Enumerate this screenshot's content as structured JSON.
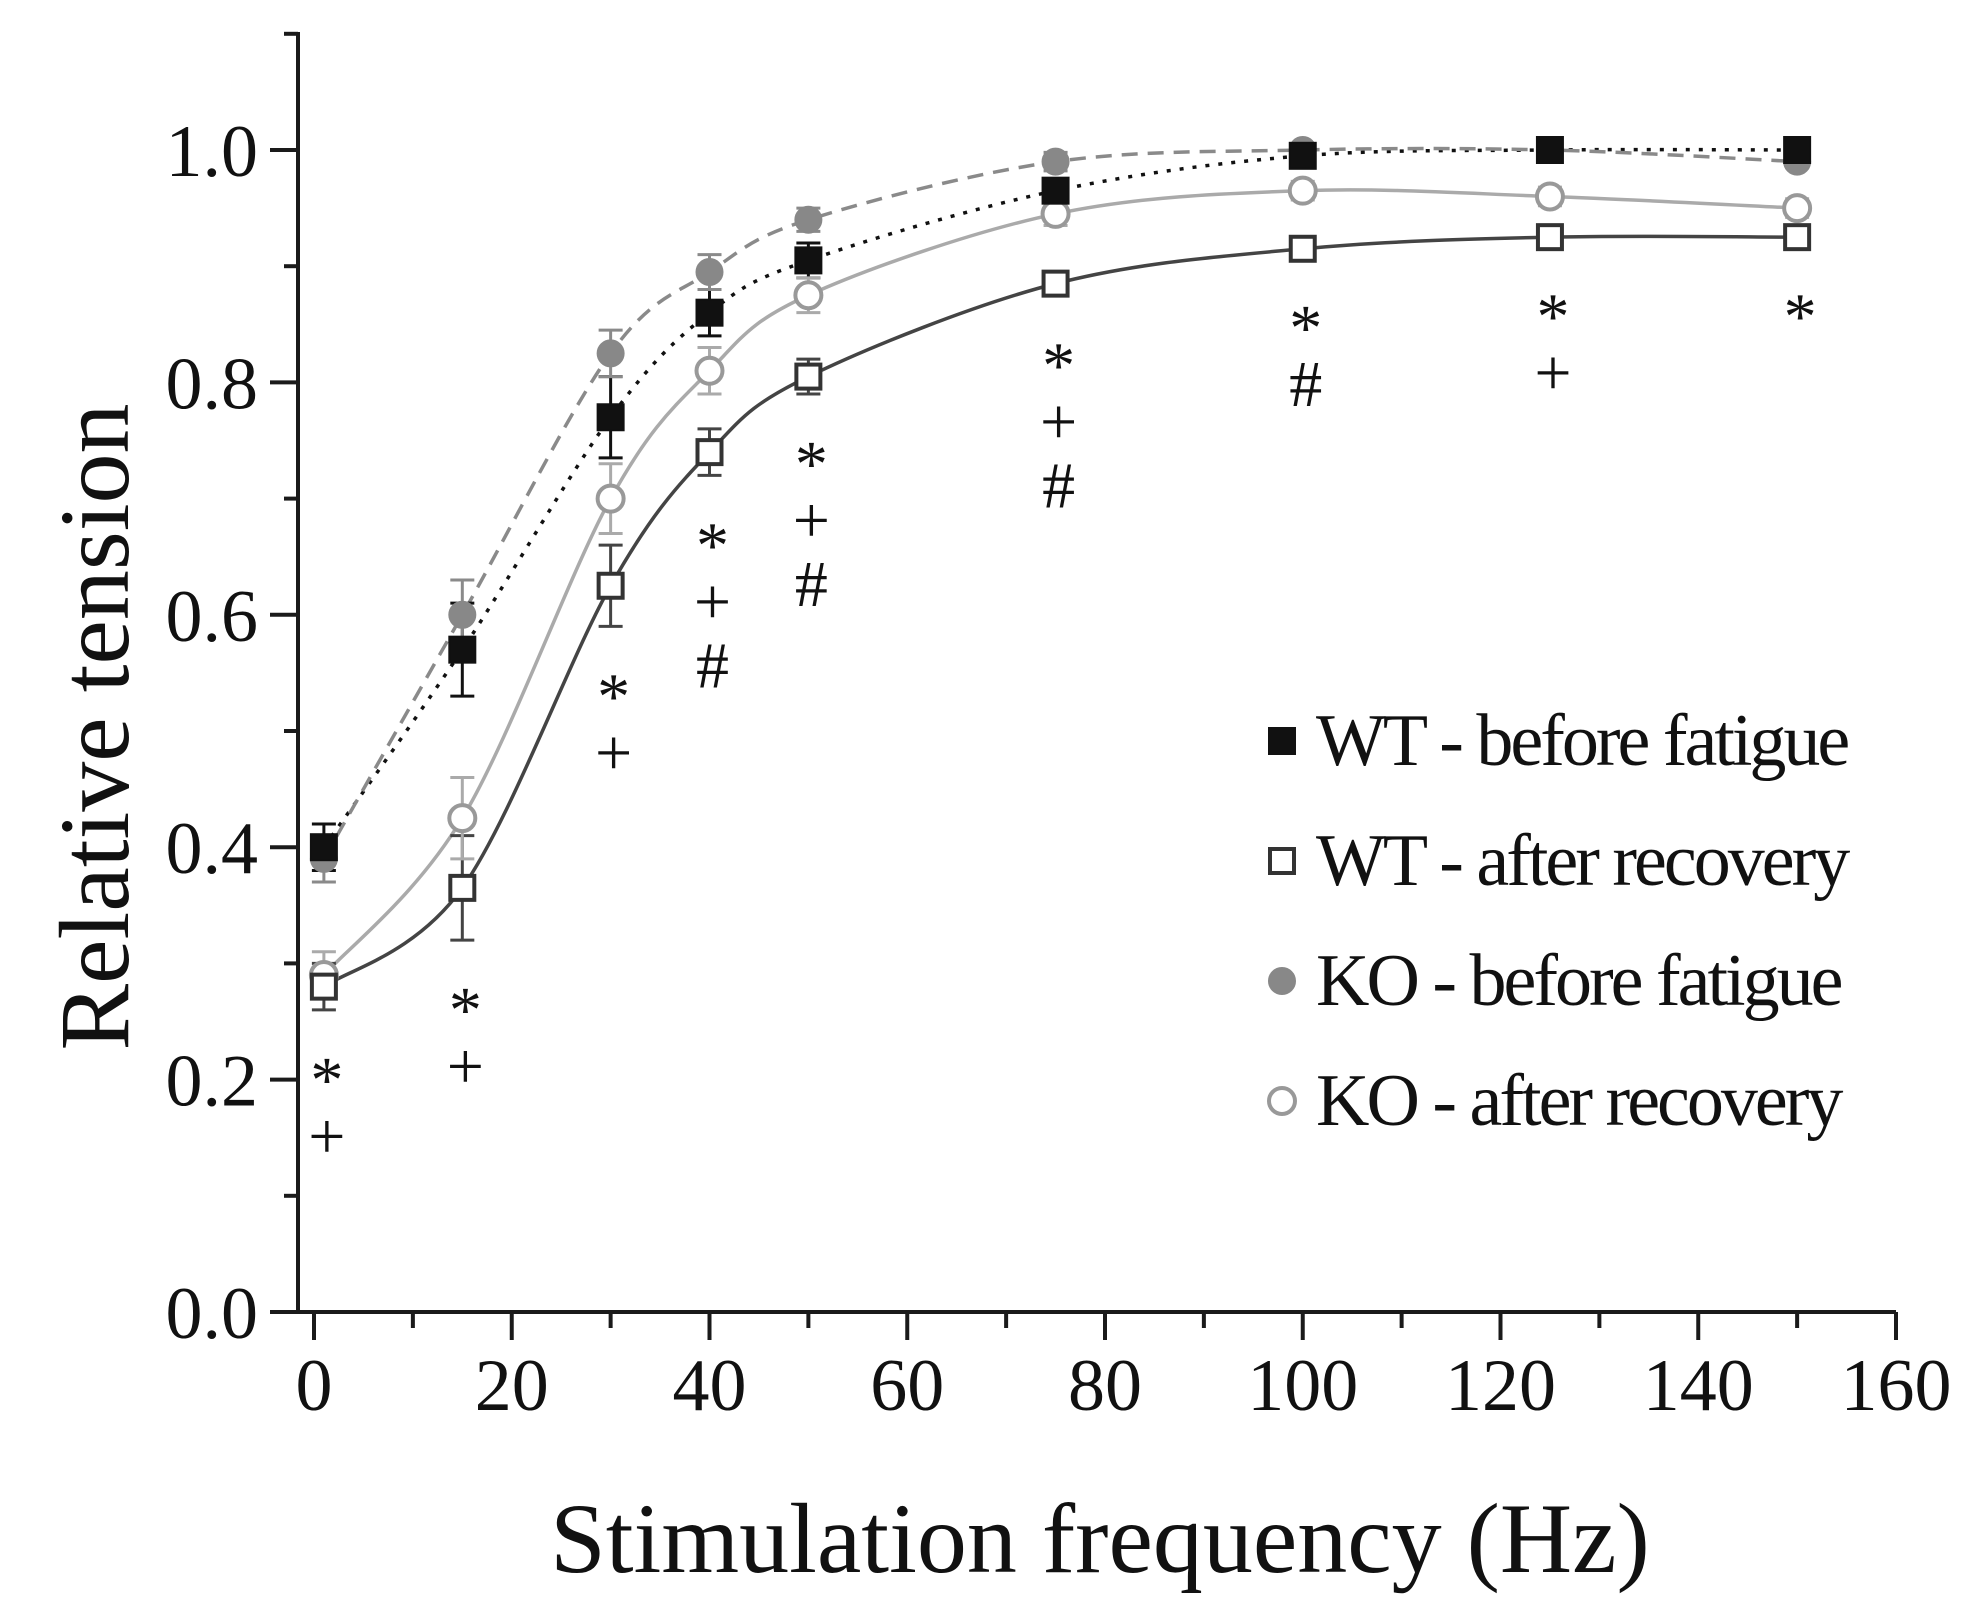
{
  "chart_data": {
    "type": "line",
    "xlabel": "Stimulation frequency (Hz)",
    "ylabel": "Relative tension",
    "xlim": [
      0,
      160
    ],
    "ylim": [
      0,
      1.1
    ],
    "xticks": [
      0,
      20,
      40,
      60,
      80,
      100,
      120,
      140,
      160
    ],
    "xtick_labels": [
      "0",
      "20",
      "40",
      "60",
      "80",
      "100",
      "120",
      "140",
      "160"
    ],
    "yticks": [
      0.0,
      0.2,
      0.4,
      0.6,
      0.8,
      1.0
    ],
    "ytick_labels": [
      "0.0",
      "0.2",
      "0.4",
      "0.6",
      "0.8",
      "1.0"
    ],
    "x": [
      1,
      15,
      30,
      40,
      50,
      75,
      100,
      125,
      150
    ],
    "series": [
      {
        "name": "WT - before fatigue",
        "values": [
          0.4,
          0.57,
          0.77,
          0.86,
          0.905,
          0.965,
          0.995,
          1.0,
          1.0
        ],
        "errors": [
          0.02,
          0.04,
          0.035,
          0.02,
          0.015,
          0.01,
          0.008,
          0.005,
          0.005
        ],
        "marker": "square-filled",
        "line": "dotted",
        "color": "#111111"
      },
      {
        "name": "WT - after recovery",
        "values": [
          0.28,
          0.365,
          0.625,
          0.74,
          0.805,
          0.885,
          0.915,
          0.925,
          0.925
        ],
        "errors": [
          0.02,
          0.045,
          0.035,
          0.02,
          0.015,
          0.01,
          0.008,
          0.008,
          0.008
        ],
        "marker": "square-open",
        "line": "solid",
        "color": "#444444"
      },
      {
        "name": "KO - before fatigue",
        "values": [
          0.39,
          0.6,
          0.825,
          0.895,
          0.94,
          0.99,
          1.0,
          1.0,
          0.99
        ],
        "errors": [
          0.02,
          0.03,
          0.02,
          0.015,
          0.01,
          0.008,
          0.005,
          0.005,
          0.005
        ],
        "marker": "circle-filled",
        "line": "dashed",
        "color": "#8a8a8a"
      },
      {
        "name": "KO - after recovery",
        "values": [
          0.29,
          0.425,
          0.7,
          0.81,
          0.875,
          0.945,
          0.965,
          0.96,
          0.95
        ],
        "errors": [
          0.02,
          0.035,
          0.03,
          0.02,
          0.015,
          0.01,
          0.008,
          0.008,
          0.008
        ],
        "marker": "circle-open",
        "line": "solid",
        "color": "#aaaaaa"
      }
    ],
    "significance": [
      {
        "x": 1,
        "marks": [
          "*",
          "+"
        ]
      },
      {
        "x": 15,
        "marks": [
          "*",
          "+"
        ]
      },
      {
        "x": 30,
        "marks": [
          "*",
          "+"
        ]
      },
      {
        "x": 40,
        "marks": [
          "*",
          "+",
          "#"
        ]
      },
      {
        "x": 50,
        "marks": [
          "*",
          "+",
          "#"
        ]
      },
      {
        "x": 75,
        "marks": [
          "*",
          "+",
          "#"
        ]
      },
      {
        "x": 100,
        "marks": [
          "*",
          "#"
        ]
      },
      {
        "x": 125,
        "marks": [
          "*",
          "+"
        ]
      },
      {
        "x": 150,
        "marks": [
          "*"
        ]
      }
    ],
    "legend_position": "right"
  }
}
